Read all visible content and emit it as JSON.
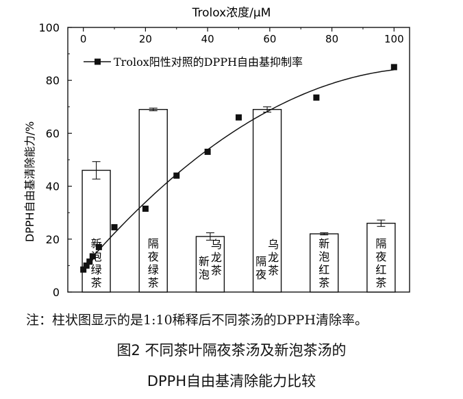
{
  "chart_data": {
    "type": "bar",
    "title_top": "Trolox浓度/μM",
    "ylabel": "DPPH自由基清除能力/%",
    "ylim": [
      0,
      100
    ],
    "yticks": [
      0,
      20,
      40,
      60,
      80,
      100
    ],
    "top_axis": {
      "xlim": [
        -5,
        105
      ],
      "ticks": [
        0,
        20,
        40,
        60,
        80,
        100
      ]
    },
    "bars": [
      {
        "label": "新泡绿茶",
        "value": 46.0,
        "error": 3.3
      },
      {
        "label": "隔夜绿茶",
        "value": 69.0,
        "error": 0.5
      },
      {
        "label": "新泡乌龙茶",
        "value": 21.0,
        "error": 1.4
      },
      {
        "label": "隔夜乌龙茶",
        "value": 69.0,
        "error": 1.0
      },
      {
        "label": "新泡红茶",
        "value": 22.0,
        "error": 0.4
      },
      {
        "label": "隔夜红茶",
        "value": 26.0,
        "error": 1.2
      }
    ],
    "scatter": {
      "name": "Trolox阳性对照的DPPH自由基抑制率",
      "x": [
        0,
        1,
        2,
        3,
        5,
        10,
        20,
        30,
        40,
        50,
        75,
        100
      ],
      "y": [
        8.5,
        10,
        11.5,
        13.5,
        17,
        24.5,
        31.5,
        44,
        53,
        66,
        73.5,
        85
      ]
    },
    "legend_position": "top-left"
  },
  "footer": {
    "note": "注：柱状图显示的是1:10稀释后不同茶汤的DPPH清除率。",
    "caption_line1": "图2   不同茶叶隔夜茶汤及新泡茶汤的",
    "caption_line2": "DPPH自由基清除能力比较"
  }
}
